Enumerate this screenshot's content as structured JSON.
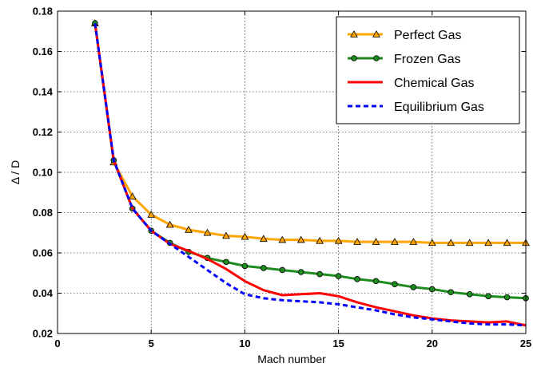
{
  "chart_data": {
    "type": "line",
    "title": "",
    "xlabel": "Mach number",
    "ylabel": "Δ / D",
    "xlim": [
      0,
      25
    ],
    "ylim": [
      0.02,
      0.18
    ],
    "xticks": [
      0,
      5,
      10,
      15,
      20,
      25
    ],
    "yticks": [
      0.02,
      0.04,
      0.06,
      0.08,
      0.1,
      0.12,
      0.14,
      0.16,
      0.18
    ],
    "xtick_labels": [
      "0",
      "5",
      "10",
      "15",
      "20",
      "25"
    ],
    "ytick_labels": [
      "0.02",
      "0.04",
      "0.06",
      "0.08",
      "0.10",
      "0.12",
      "0.14",
      "0.16",
      "0.18"
    ],
    "grid": true,
    "legend_position": "top-right",
    "series": [
      {
        "name": "Perfect Gas",
        "color": "#FFA500",
        "line_style": "solid",
        "marker": "triangle",
        "x": [
          2,
          3,
          4,
          5,
          6,
          7,
          8,
          9,
          10,
          11,
          12,
          13,
          14,
          15,
          16,
          17,
          18,
          19,
          20,
          21,
          22,
          23,
          24,
          25
        ],
        "y": [
          0.174,
          0.105,
          0.088,
          0.079,
          0.074,
          0.0715,
          0.07,
          0.0685,
          0.068,
          0.067,
          0.0665,
          0.0665,
          0.066,
          0.066,
          0.0655,
          0.0655,
          0.0655,
          0.0655,
          0.065,
          0.065,
          0.065,
          0.065,
          0.065,
          0.065
        ]
      },
      {
        "name": "Frozen Gas",
        "color": "#1E8C1E",
        "line_style": "solid",
        "marker": "circle",
        "x": [
          2,
          3,
          4,
          5,
          6,
          7,
          8,
          9,
          10,
          11,
          12,
          13,
          14,
          15,
          16,
          17,
          18,
          19,
          20,
          21,
          22,
          23,
          24,
          25
        ],
        "y": [
          0.174,
          0.106,
          0.082,
          0.071,
          0.065,
          0.0605,
          0.0575,
          0.0555,
          0.0535,
          0.0525,
          0.0515,
          0.0505,
          0.0495,
          0.0485,
          0.047,
          0.046,
          0.0445,
          0.043,
          0.042,
          0.0405,
          0.0395,
          0.0385,
          0.038,
          0.0375
        ]
      },
      {
        "name": "Chemical Gas",
        "color": "#FF0000",
        "line_style": "solid",
        "marker": "none",
        "x": [
          2,
          3,
          4,
          5,
          6,
          7,
          8,
          9,
          10,
          11,
          12,
          13,
          14,
          15,
          16,
          17,
          18,
          19,
          20,
          21,
          22,
          23,
          24,
          25
        ],
        "y": [
          0.174,
          0.106,
          0.082,
          0.071,
          0.0645,
          0.061,
          0.057,
          0.052,
          0.046,
          0.0415,
          0.039,
          0.0395,
          0.04,
          0.0385,
          0.0355,
          0.033,
          0.031,
          0.029,
          0.0275,
          0.0265,
          0.026,
          0.0255,
          0.026,
          0.024
        ]
      },
      {
        "name": "Equilibrium Gas",
        "color": "#0000FF",
        "line_style": "dashed",
        "marker": "none",
        "x": [
          2,
          3,
          4,
          5,
          6,
          7,
          8,
          9,
          10,
          11,
          12,
          13,
          14,
          15,
          16,
          17,
          18,
          19,
          20,
          21,
          22,
          23,
          24,
          25
        ],
        "y": [
          0.174,
          0.106,
          0.082,
          0.071,
          0.0645,
          0.058,
          0.0515,
          0.045,
          0.0395,
          0.0375,
          0.0365,
          0.036,
          0.0355,
          0.0345,
          0.033,
          0.0315,
          0.0295,
          0.028,
          0.027,
          0.026,
          0.025,
          0.0245,
          0.0245,
          0.024
        ]
      }
    ]
  }
}
